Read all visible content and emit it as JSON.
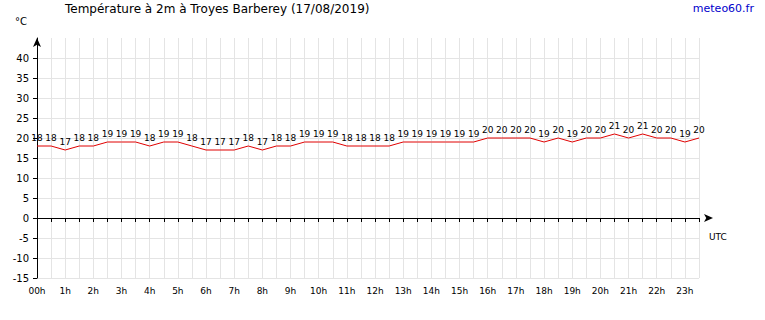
{
  "chart_data": {
    "type": "line",
    "title": "Température à 2m à Troyes Barberey (17/08/2019)",
    "subtitle": "meteo60.fr",
    "y_label": "°C",
    "x_label": "UTC",
    "categories": [
      "00h",
      null,
      "1h",
      null,
      "2h",
      null,
      "3h",
      null,
      "4h",
      null,
      "5h",
      null,
      "6h",
      null,
      "7h",
      null,
      "8h",
      null,
      "9h",
      null,
      "10h",
      null,
      "11h",
      null,
      "12h",
      null,
      "13h",
      null,
      "14h",
      null,
      "15h",
      null,
      "16h",
      null,
      "17h",
      null,
      "18h",
      null,
      "19h",
      null,
      "20h",
      null,
      "21h",
      null,
      "22h",
      null,
      "23h",
      null
    ],
    "values": [
      18,
      18,
      17,
      18,
      18,
      19,
      19,
      19,
      18,
      19,
      19,
      18,
      17,
      17,
      17,
      18,
      17,
      18,
      18,
      19,
      19,
      19,
      18,
      18,
      18,
      18,
      19,
      19,
      19,
      19,
      19,
      19,
      20,
      20,
      20,
      20,
      19,
      20,
      19,
      20,
      20,
      21,
      20,
      21,
      20,
      20,
      19,
      20
    ],
    "color": "#e00000",
    "ylim": [
      -15,
      45
    ],
    "yticks": [
      -15,
      -10,
      -5,
      0,
      5,
      10,
      15,
      20,
      25,
      30,
      35,
      40
    ],
    "grid": true,
    "data_labels": true
  }
}
